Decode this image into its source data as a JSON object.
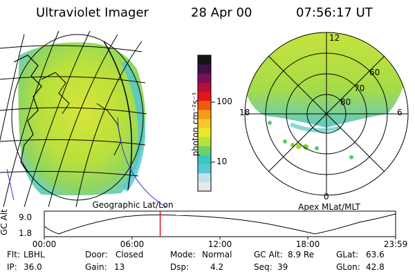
{
  "header": {
    "instrument": "Ultraviolet Imager",
    "date": "28 Apr 00",
    "time": "07:56:17 UT"
  },
  "colorbar": {
    "unit_label": "photon cm⁻²s⁻¹",
    "tick_100": "100",
    "tick_10": "10",
    "colors": [
      "#e8e8e8",
      "#bfe3ec",
      "#59c8d4",
      "#3cc6c4",
      "#6fd06a",
      "#b7e23a",
      "#e8e82c",
      "#f5c928",
      "#f59a16",
      "#f05a0f",
      "#e0161a",
      "#b40f3c",
      "#7a1058",
      "#40104a",
      "#141414"
    ]
  },
  "left_panel": {
    "label": "Geographic Lat/Lon"
  },
  "right_panel": {
    "label": "Apex MLat/MLT",
    "mlt_labels": {
      "top": "12",
      "left": "18",
      "right": "6",
      "bottom": "0"
    },
    "lat_labels": [
      "60",
      "70",
      "80"
    ]
  },
  "timeline": {
    "axis_label": "GC Alt",
    "y_ticks": [
      "9.0",
      "1.8"
    ],
    "x_ticks": [
      "00:00",
      "06:00",
      "12:00",
      "18:00",
      "23:59"
    ],
    "marker_time_fraction": 0.33
  },
  "info": {
    "flt_label": "Flt:",
    "flt_value": "LBHL",
    "ip_label": "IP:",
    "ip_value": "36.0",
    "door_label": "Door:",
    "door_value": "Closed",
    "gain_label": "Gain:",
    "gain_value": "13",
    "mode_label": "Mode:",
    "mode_value": "Normal",
    "dsp_label": "Dsp:",
    "dsp_value": "4.2",
    "gcalt_label": "GC Alt:",
    "gcalt_value": "8.9 Re",
    "seq_label": "Seq:",
    "seq_value": "39",
    "glat_label": "GLat:",
    "glat_value": "63.6",
    "glon_label": "GLon:",
    "glon_value": "42.8"
  }
}
